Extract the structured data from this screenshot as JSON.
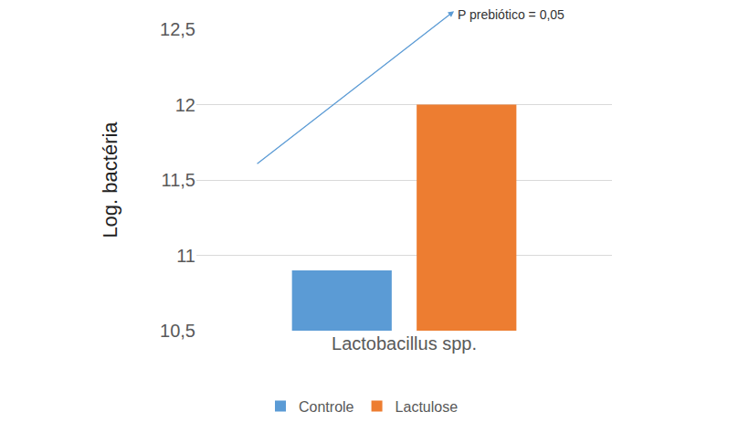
{
  "chart_data": {
    "type": "bar",
    "y_label": "Log. bactéria",
    "categories": [
      "Lactobacillus spp."
    ],
    "series": [
      {
        "name": "Controle",
        "color": "#5b9bd5",
        "values": [
          10.9
        ]
      },
      {
        "name": "Lactulose",
        "color": "#ed7d31",
        "values": [
          12.0
        ]
      }
    ],
    "ylim": [
      10.5,
      12.5
    ],
    "yticks": [
      {
        "value": 10.5,
        "label": "10,5"
      },
      11,
      {
        "value": 11.5,
        "label": "11,5"
      },
      12,
      {
        "value": 12.5,
        "label": "12,5"
      }
    ],
    "grid": true,
    "legend": "bottom",
    "annotations": [
      "P prebiótico = 0,05"
    ]
  }
}
